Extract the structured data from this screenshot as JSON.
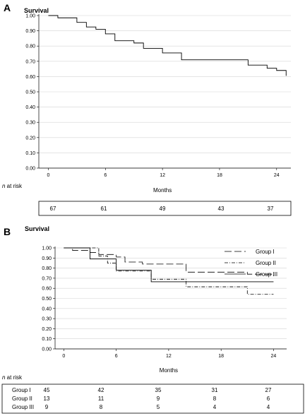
{
  "chart_data": [
    {
      "panel": "A",
      "type": "line",
      "ylabel": "Survival",
      "xlabel": "Months",
      "xlim": [
        -1,
        25.5
      ],
      "ylim": [
        0,
        1.0
      ],
      "xticks": [
        0,
        6,
        12,
        18,
        24
      ],
      "yticks": [
        0,
        0.1,
        0.2,
        0.3,
        0.4,
        0.5,
        0.6,
        0.7,
        0.8,
        0.9,
        1.0
      ],
      "ytick_labels": [
        "0.00",
        "0.10",
        "0.20",
        "0.30",
        "0.40",
        "0.50",
        "0.60",
        "0.70",
        "0.80",
        "0.90",
        "1.00"
      ],
      "grid": true,
      "series": [
        {
          "style": "solid",
          "points": [
            [
              0,
              1.0
            ],
            [
              1,
              1.0
            ],
            [
              1,
              0.985
            ],
            [
              3,
              0.985
            ],
            [
              3,
              0.955
            ],
            [
              4,
              0.955
            ],
            [
              4,
              0.925
            ],
            [
              5,
              0.925
            ],
            [
              5,
              0.91
            ],
            [
              6,
              0.91
            ],
            [
              6,
              0.88
            ],
            [
              7,
              0.88
            ],
            [
              7,
              0.835
            ],
            [
              9,
              0.835
            ],
            [
              9,
              0.82
            ],
            [
              10,
              0.82
            ],
            [
              10,
              0.785
            ],
            [
              12,
              0.785
            ],
            [
              12,
              0.755
            ],
            [
              14,
              0.755
            ],
            [
              14,
              0.71
            ],
            [
              21,
              0.71
            ],
            [
              21,
              0.675
            ],
            [
              23,
              0.675
            ],
            [
              23,
              0.655
            ],
            [
              24,
              0.655
            ],
            [
              24,
              0.64
            ],
            [
              25,
              0.64
            ],
            [
              25,
              0.605
            ]
          ]
        }
      ],
      "risk_table": {
        "title_prefix": "n",
        "title_suffix": " at risk",
        "rows": [
          {
            "label": "",
            "values": [
              "67",
              "61",
              "49",
              "43",
              "37"
            ]
          }
        ]
      }
    },
    {
      "panel": "B",
      "type": "line",
      "ylabel": "Survival",
      "xlabel": "Months",
      "xlim": [
        -1,
        25.5
      ],
      "ylim": [
        0,
        1.0
      ],
      "xticks": [
        0,
        6,
        12,
        18,
        24
      ],
      "yticks": [
        0,
        0.1,
        0.2,
        0.3,
        0.4,
        0.5,
        0.6,
        0.7,
        0.8,
        0.9,
        1.0
      ],
      "ytick_labels": [
        "0.00",
        "0.10",
        "0.20",
        "0.30",
        "0.40",
        "0.50",
        "0.60",
        "0.70",
        "0.80",
        "0.90",
        "1.00"
      ],
      "grid": true,
      "legend_placement": "top-right",
      "series": [
        {
          "name": "Group I",
          "style": "dash",
          "points": [
            [
              0,
              1.0
            ],
            [
              1,
              1.0
            ],
            [
              1,
              0.975
            ],
            [
              3,
              0.975
            ],
            [
              3,
              0.955
            ],
            [
              4,
              0.955
            ],
            [
              4,
              0.935
            ],
            [
              6,
              0.935
            ],
            [
              6,
              0.91
            ],
            [
              7,
              0.91
            ],
            [
              7,
              0.86
            ],
            [
              9,
              0.86
            ],
            [
              9,
              0.84
            ],
            [
              14,
              0.84
            ],
            [
              14,
              0.76
            ],
            [
              21,
              0.76
            ],
            [
              21,
              0.74
            ],
            [
              24,
              0.74
            ],
            [
              24,
              0.72
            ]
          ]
        },
        {
          "name": "Group II",
          "style": "dashdot",
          "points": [
            [
              0,
              1.0
            ],
            [
              4,
              1.0
            ],
            [
              4,
              0.92
            ],
            [
              5,
              0.92
            ],
            [
              5,
              0.85
            ],
            [
              6,
              0.85
            ],
            [
              6,
              0.77
            ],
            [
              10,
              0.77
            ],
            [
              10,
              0.69
            ],
            [
              14,
              0.69
            ],
            [
              14,
              0.615
            ],
            [
              21,
              0.615
            ],
            [
              21,
              0.54
            ],
            [
              24,
              0.54
            ]
          ]
        },
        {
          "name": "Group III",
          "style": "solid",
          "points": [
            [
              0,
              1.0
            ],
            [
              3,
              1.0
            ],
            [
              3,
              0.89
            ],
            [
              6,
              0.89
            ],
            [
              6,
              0.78
            ],
            [
              10,
              0.78
            ],
            [
              10,
              0.665
            ],
            [
              24,
              0.665
            ]
          ]
        }
      ],
      "risk_table": {
        "title_prefix": "n",
        "title_suffix": " at risk",
        "rows": [
          {
            "label": "Group I",
            "values": [
              "45",
              "42",
              "35",
              "31",
              "27"
            ]
          },
          {
            "label": "Group II",
            "values": [
              "13",
              "11",
              "9",
              "8",
              "6"
            ]
          },
          {
            "label": "Group III",
            "values": [
              "9",
              "8",
              "5",
              "4",
              "4"
            ]
          }
        ]
      }
    }
  ]
}
